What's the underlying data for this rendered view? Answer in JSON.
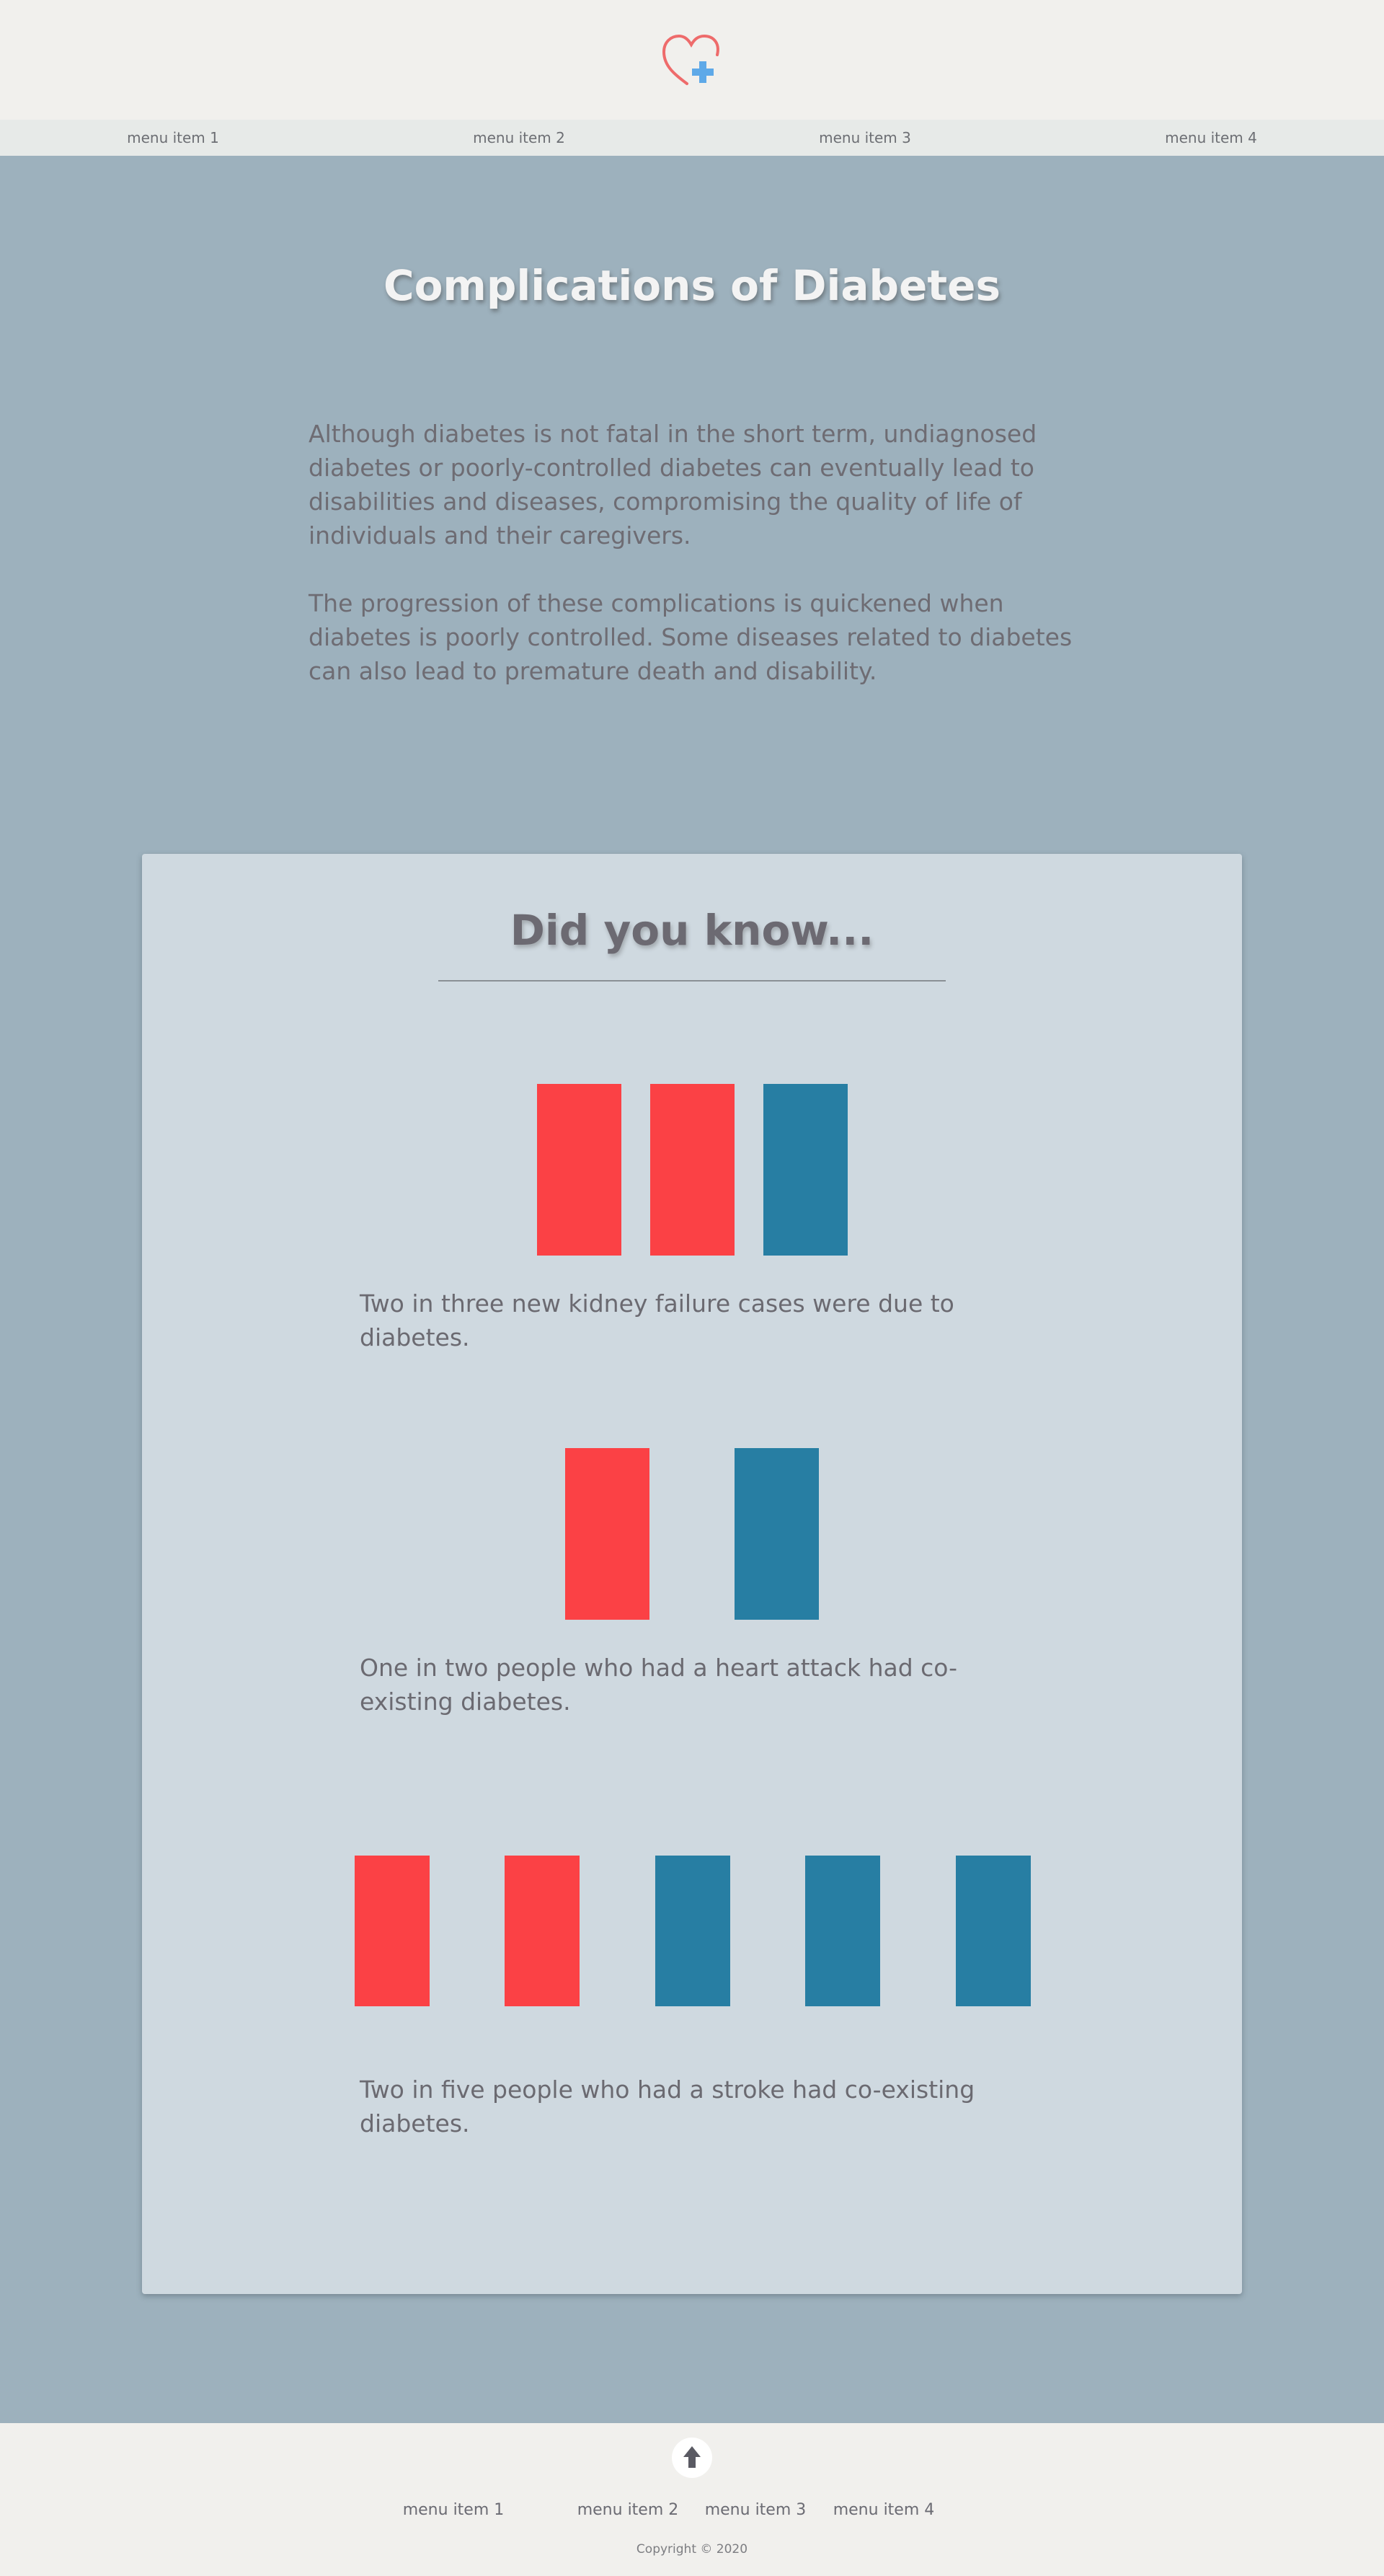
{
  "header": {
    "logo_icon": "heart-plus-icon"
  },
  "nav": {
    "items": [
      {
        "label": "menu item 1"
      },
      {
        "label": "menu item 2"
      },
      {
        "label": "menu item 3"
      },
      {
        "label": "menu item 4"
      }
    ]
  },
  "hero": {
    "title": "Complications of Diabetes"
  },
  "intro": {
    "paragraphs": [
      "Although diabetes is not fatal in the short term, undiagnosed diabetes or poorly-controlled diabetes can eventually lead to disabilities and diseases, compromising the quality of life of individuals and their caregivers.",
      "The progression of these complications is quickened when diabetes is poorly controlled. Some diseases related to diabetes can also lead to premature death and disability."
    ]
  },
  "did_you_know": {
    "title": "Did you know...",
    "stats": [
      {
        "highlighted": 2,
        "total": 3,
        "text": "Two in three new kidney failure cases were due to diabetes."
      },
      {
        "highlighted": 1,
        "total": 2,
        "text": "One in two people who had a heart attack had co-existing diabetes."
      },
      {
        "highlighted": 2,
        "total": 5,
        "text": "Two in five people who had a stroke had co-existing diabetes."
      }
    ]
  },
  "colors": {
    "highlight": "#fb4145",
    "base": "#277ea3"
  },
  "footer": {
    "up_icon": "arrow-up-icon",
    "nav": [
      {
        "label": "menu item 1"
      },
      {
        "label": "menu item 2"
      },
      {
        "label": "menu item 3"
      },
      {
        "label": "menu item 4"
      }
    ],
    "copyright": "Copyright © 2020"
  }
}
